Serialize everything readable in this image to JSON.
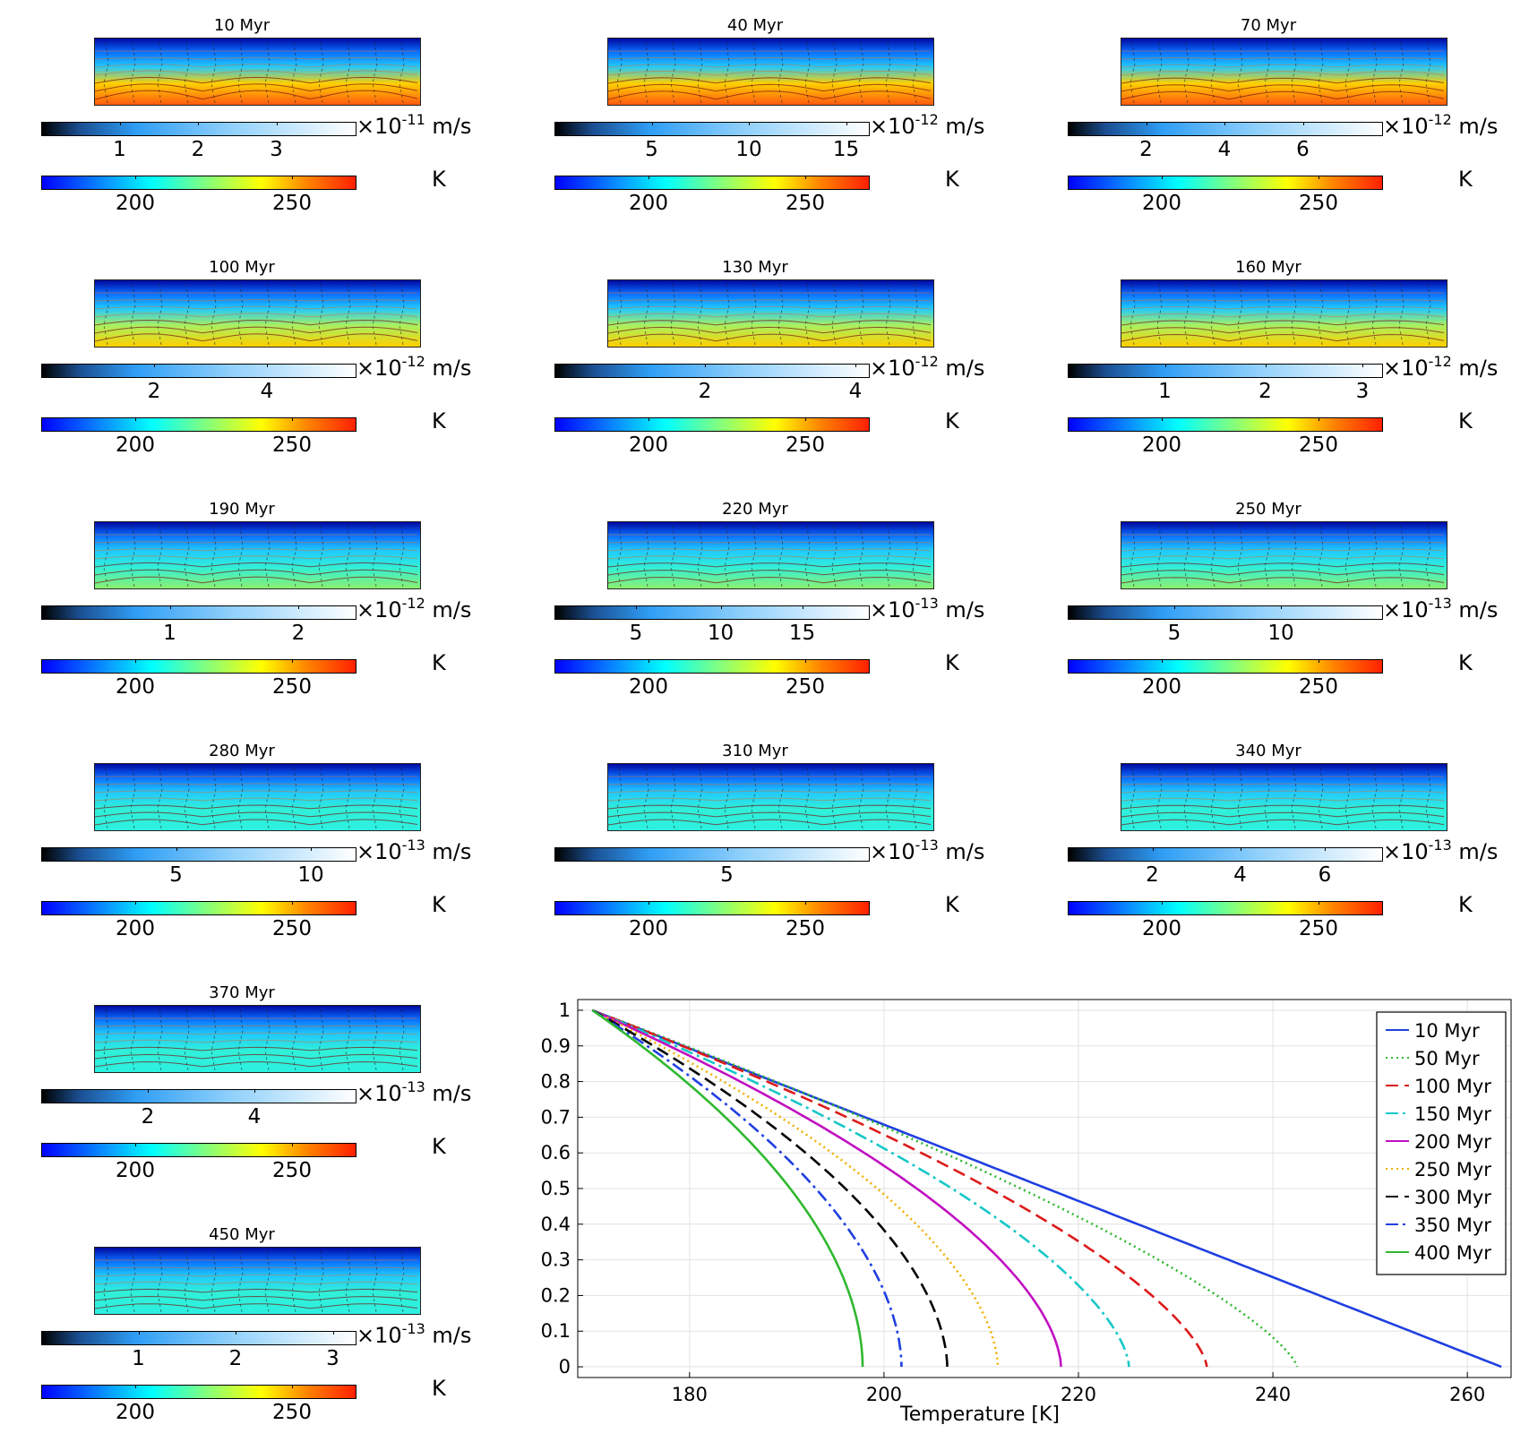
{
  "panels": [
    {
      "title": "10 Myr",
      "velocity_exp": "-11",
      "velocity_ticks": [
        "1",
        "2",
        "3"
      ],
      "velocity_tick_pos": [
        0.25,
        0.5,
        0.75
      ],
      "temp_ticks": [
        "200",
        "250"
      ],
      "velocity_unit": "m/s",
      "temp_unit": "K",
      "heat": 0.95
    },
    {
      "title": "40 Myr",
      "velocity_exp": "-12",
      "velocity_ticks": [
        "5",
        "10",
        "15"
      ],
      "velocity_tick_pos": [
        0.31,
        0.62,
        0.93
      ],
      "temp_ticks": [
        "200",
        "250"
      ],
      "velocity_unit": "m/s",
      "temp_unit": "K",
      "heat": 0.85
    },
    {
      "title": "70 Myr",
      "velocity_exp": "-12",
      "velocity_ticks": [
        "2",
        "4",
        "6"
      ],
      "velocity_tick_pos": [
        0.25,
        0.5,
        0.75
      ],
      "temp_ticks": [
        "200",
        "250"
      ],
      "velocity_unit": "m/s",
      "temp_unit": "K",
      "heat": 0.78
    },
    {
      "title": "100 Myr",
      "velocity_exp": "-12",
      "velocity_ticks": [
        "2",
        "4"
      ],
      "velocity_tick_pos": [
        0.36,
        0.72
      ],
      "temp_ticks": [
        "200",
        "250"
      ],
      "velocity_unit": "m/s",
      "temp_unit": "K",
      "heat": 0.7
    },
    {
      "title": "130 Myr",
      "velocity_exp": "-12",
      "velocity_ticks": [
        "2",
        "4"
      ],
      "velocity_tick_pos": [
        0.48,
        0.96
      ],
      "temp_ticks": [
        "200",
        "250"
      ],
      "velocity_unit": "m/s",
      "temp_unit": "K",
      "heat": 0.65
    },
    {
      "title": "160 Myr",
      "velocity_exp": "-12",
      "velocity_ticks": [
        "1",
        "2",
        "3"
      ],
      "velocity_tick_pos": [
        0.31,
        0.63,
        0.94
      ],
      "temp_ticks": [
        "200",
        "250"
      ],
      "velocity_unit": "m/s",
      "temp_unit": "K",
      "heat": 0.6
    },
    {
      "title": "190 Myr",
      "velocity_exp": "-12",
      "velocity_ticks": [
        "1",
        "2"
      ],
      "velocity_tick_pos": [
        0.41,
        0.82
      ],
      "temp_ticks": [
        "200",
        "250"
      ],
      "velocity_unit": "m/s",
      "temp_unit": "K",
      "heat": 0.5
    },
    {
      "title": "220 Myr",
      "velocity_exp": "-13",
      "velocity_ticks": [
        "5",
        "10",
        "15"
      ],
      "velocity_tick_pos": [
        0.26,
        0.53,
        0.79
      ],
      "temp_ticks": [
        "200",
        "250"
      ],
      "velocity_unit": "m/s",
      "temp_unit": "K",
      "heat": 0.45
    },
    {
      "title": "250 Myr",
      "velocity_exp": "-13",
      "velocity_ticks": [
        "5",
        "10"
      ],
      "velocity_tick_pos": [
        0.34,
        0.68
      ],
      "temp_ticks": [
        "200",
        "250"
      ],
      "velocity_unit": "m/s",
      "temp_unit": "K",
      "heat": 0.42
    },
    {
      "title": "280 Myr",
      "velocity_exp": "-13",
      "velocity_ticks": [
        "5",
        "10"
      ],
      "velocity_tick_pos": [
        0.43,
        0.86
      ],
      "temp_ticks": [
        "200",
        "250"
      ],
      "velocity_unit": "m/s",
      "temp_unit": "K",
      "heat": 0.38
    },
    {
      "title": "310 Myr",
      "velocity_exp": "-13",
      "velocity_ticks": [
        "5"
      ],
      "velocity_tick_pos": [
        0.55
      ],
      "temp_ticks": [
        "200",
        "250"
      ],
      "velocity_unit": "m/s",
      "temp_unit": "K",
      "heat": 0.36
    },
    {
      "title": "340 Myr",
      "velocity_exp": "-13",
      "velocity_ticks": [
        "2",
        "4",
        "6"
      ],
      "velocity_tick_pos": [
        0.27,
        0.55,
        0.82
      ],
      "temp_ticks": [
        "200",
        "250"
      ],
      "velocity_unit": "m/s",
      "temp_unit": "K",
      "heat": 0.33
    },
    {
      "title": "370 Myr",
      "velocity_exp": "-13",
      "velocity_ticks": [
        "2",
        "4"
      ],
      "velocity_tick_pos": [
        0.34,
        0.68
      ],
      "temp_ticks": [
        "200",
        "250"
      ],
      "velocity_unit": "m/s",
      "temp_unit": "K",
      "heat": 0.3
    },
    {
      "title": "450 Myr",
      "velocity_exp": "-13",
      "velocity_ticks": [
        "1",
        "2",
        "3"
      ],
      "velocity_tick_pos": [
        0.31,
        0.62,
        0.93
      ],
      "temp_ticks": [
        "200",
        "250"
      ],
      "velocity_unit": "m/s",
      "temp_unit": "K",
      "heat": 0.28
    }
  ],
  "temp_scale": {
    "min": 170,
    "max": 270
  },
  "chart_data": {
    "type": "line",
    "xlabel": "Temperature [K]",
    "ylabel": "",
    "xlim": [
      168.5,
      264.5
    ],
    "ylim": [
      -0.03,
      1.03
    ],
    "xticks": [
      "180",
      "200",
      "220",
      "240",
      "260"
    ],
    "xtick_values": [
      180,
      200,
      220,
      240,
      260
    ],
    "yticks": [
      "0",
      "0.1",
      "0.2",
      "0.3",
      "0.4",
      "0.5",
      "0.6",
      "0.7",
      "0.8",
      "0.9",
      "1"
    ],
    "ytick_values": [
      0,
      0.1,
      0.2,
      0.3,
      0.4,
      0.5,
      0.6,
      0.7,
      0.8,
      0.9,
      1
    ],
    "grid": true,
    "legend_position": "top-right",
    "top_temperature": 170,
    "series": [
      {
        "name": "10 Myr",
        "bottom_temperature": 263.5,
        "shape": 1.0,
        "color": "#1f3fe0",
        "style": "solid"
      },
      {
        "name": "50 Myr",
        "bottom_temperature": 242.5,
        "shape": 1.35,
        "color": "#2fb82f",
        "style": "dotted"
      },
      {
        "name": "100 Myr",
        "bottom_temperature": 233.2,
        "shape": 1.5,
        "color": "#dd1a1a",
        "style": "dashed"
      },
      {
        "name": "150 Myr",
        "bottom_temperature": 225.2,
        "shape": 1.6,
        "color": "#17c7c7",
        "style": "dashdot"
      },
      {
        "name": "200 Myr",
        "bottom_temperature": 218.2,
        "shape": 1.7,
        "color": "#c010c0",
        "style": "solid"
      },
      {
        "name": "250 Myr",
        "bottom_temperature": 211.7,
        "shape": 1.75,
        "color": "#f0b000",
        "style": "dotted"
      },
      {
        "name": "300 Myr",
        "bottom_temperature": 206.5,
        "shape": 1.8,
        "color": "#000000",
        "style": "dashed"
      },
      {
        "name": "350 Myr",
        "bottom_temperature": 201.8,
        "shape": 1.85,
        "color": "#1f3fe0",
        "style": "dashdot"
      },
      {
        "name": "400 Myr",
        "bottom_temperature": 197.8,
        "shape": 1.9,
        "color": "#2fb82f",
        "style": "solid"
      }
    ]
  }
}
